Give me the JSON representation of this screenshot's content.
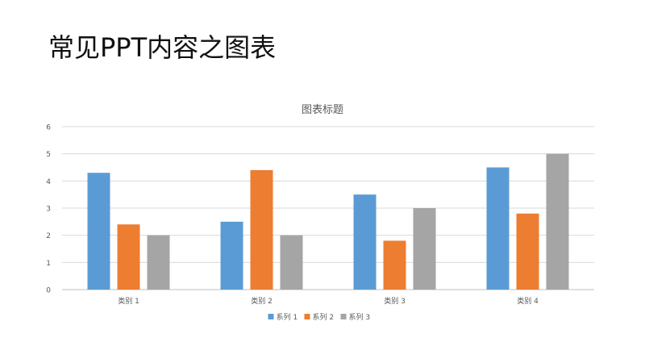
{
  "slide": {
    "title": "常见PPT内容之图表"
  },
  "chart_data": {
    "type": "bar",
    "title": "图表标题",
    "categories": [
      "类别 1",
      "类别 2",
      "类别 3",
      "类别 4"
    ],
    "series": [
      {
        "name": "系列 1",
        "values": [
          4.3,
          2.5,
          3.5,
          4.5
        ],
        "color": "#5B9BD5"
      },
      {
        "name": "系列 2",
        "values": [
          2.4,
          4.4,
          1.8,
          2.8
        ],
        "color": "#ED7D31"
      },
      {
        "name": "系列 3",
        "values": [
          2,
          2,
          3,
          5
        ],
        "color": "#A5A5A5"
      }
    ],
    "yticks": [
      "0",
      "1",
      "2",
      "3",
      "4",
      "5",
      "6"
    ],
    "ylim": [
      0,
      6
    ],
    "grid": true,
    "legend": "bottom",
    "colors": {
      "gridline": "#D9D9D9",
      "axis": "#BFBFBF",
      "text": "#595959"
    }
  }
}
